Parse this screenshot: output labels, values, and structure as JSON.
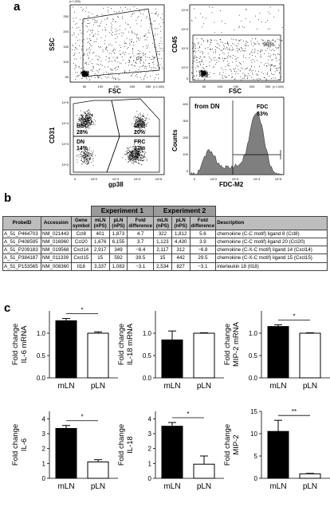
{
  "panel_labels": {
    "a": "a",
    "b": "b",
    "c": "c"
  },
  "flow": {
    "p1": {
      "xlabel": "FSC",
      "ylabel": "SSC",
      "gate": "P1",
      "xscale": "(x 1,000)",
      "yscale": "(x 1,000)",
      "yticks": [
        "250",
        "200",
        "150",
        "100",
        "50"
      ],
      "xticks": [
        "50",
        "100",
        "150",
        "200",
        "250"
      ]
    },
    "p2": {
      "xlabel": "FSC",
      "ylabel": "CD45",
      "pct": "98%",
      "xscale": "(x 1,000)",
      "yticks": [
        "10^5",
        "10^4",
        "10^3",
        "10^2",
        "0"
      ],
      "xticks": [
        "50",
        "100",
        "150",
        "200",
        "250"
      ]
    },
    "p3": {
      "xlabel": "gp38",
      "ylabel": "CD31",
      "bec": "BEC",
      "bec_pct": "28%",
      "lec": "LEC",
      "lec_pct": "20%",
      "dn": "DN",
      "dn_pct": "14%",
      "frc": "FRC",
      "frc_pct": "37%",
      "yticks": [
        "10^5",
        "10^4",
        "10^3",
        "10^2"
      ],
      "xticks": [
        "0",
        "10^2",
        "10^3",
        "10^4",
        "10^5"
      ]
    },
    "p4": {
      "xlabel": "FDC-M2",
      "ylabel": "Counts",
      "from": "from DN",
      "gate": "FDC",
      "gate_pct": "53%",
      "yticks": [
        "400",
        "300",
        "200",
        "100",
        "0"
      ],
      "xticks": [
        "0",
        "10^2",
        "10^3",
        "10^4",
        "10^5"
      ]
    }
  },
  "table": {
    "exp1": "Experiment 1",
    "exp2": "Experiment 2",
    "headers": [
      "ProbeID",
      "Accession",
      "Gene symbol",
      "mLN (nPS)",
      "pLN (nPS)",
      "Fold difference",
      "mLN (nPS)",
      "pLN (nPS)",
      "Fold difference",
      "Description"
    ],
    "rows": [
      [
        "A_51_P464703",
        "NM_021443",
        "Ccl8",
        "401",
        "1,873",
        "4.7",
        "322",
        "1,812",
        "5.6",
        "chemokine (C-C motif) ligand 8 (Ccl8)"
      ],
      [
        "A_51_P408595",
        "NM_016960",
        "Ccl20",
        "1,676",
        "6,155",
        "3.7",
        "1,123",
        "4,430",
        "3.9",
        "chemokine (C-C motif) ligand 20 (Ccl20)"
      ],
      [
        "A_51_P209183",
        "NM_019568",
        "Cxcl14",
        "2,917",
        "349",
        "−8.4",
        "2,117",
        "312",
        "−6.8",
        "chemokine (C-X-C motif) ligand 14 (Cxcl14)"
      ],
      [
        "A_51_P384187",
        "NM_011339",
        "Cxcl15",
        "15",
        "592",
        "39.5",
        "15",
        "442",
        "29.5",
        "chemokine (C-X-C motif) ligand 15 (Cxcl15)"
      ],
      [
        "A_51_P153565",
        "NM_008360",
        "Il18",
        "3,337",
        "1,083",
        "−3.1",
        "2,534",
        "827",
        "−3.1",
        "interleukin 18 (Il18)"
      ]
    ]
  },
  "chart_data": [
    {
      "type": "bar",
      "ylabel": "Fold change IL-6 mRNA",
      "categories": [
        "mLN",
        "pLN"
      ],
      "values": [
        1.28,
        1.0
      ],
      "errors": [
        0.05,
        0.03
      ],
      "ylim": [
        0,
        1.5
      ],
      "yticks": [
        "0.0",
        "0.5",
        "1.0"
      ],
      "sig": "*",
      "fills": [
        "#000000",
        "#ffffff"
      ]
    },
    {
      "type": "bar",
      "ylabel": "Fold change IL-18 mRNA",
      "categories": [
        "mLN",
        "pLN"
      ],
      "values": [
        0.85,
        1.0
      ],
      "errors": [
        0.2,
        0.01
      ],
      "ylim": [
        0,
        1.5
      ],
      "yticks": [
        "0.0",
        "0.5",
        "1.0"
      ],
      "sig": "",
      "fills": [
        "#000000",
        "#ffffff"
      ]
    },
    {
      "type": "bar",
      "ylabel": "Fold change MIP-2 mRNA",
      "categories": [
        "mLN",
        "pLN"
      ],
      "values": [
        1.15,
        1.0
      ],
      "errors": [
        0.04,
        0.01
      ],
      "ylim": [
        0,
        1.5
      ],
      "yticks": [
        "0.0",
        "0.5",
        "1.0"
      ],
      "sig": "*",
      "fills": [
        "#000000",
        "#ffffff"
      ]
    },
    {
      "type": "bar",
      "ylabel": "Fold change IL-6",
      "categories": [
        "mLN",
        "pLN"
      ],
      "values": [
        3.35,
        1.1
      ],
      "errors": [
        0.2,
        0.15
      ],
      "ylim": [
        0,
        4.5
      ],
      "yticks": [
        "0",
        "1",
        "2",
        "3",
        "4"
      ],
      "sig": "*",
      "fills": [
        "#000000",
        "#ffffff"
      ]
    },
    {
      "type": "bar",
      "ylabel": "Fold change IL-18",
      "categories": [
        "mLN",
        "pLN"
      ],
      "values": [
        3.5,
        0.95
      ],
      "errors": [
        0.25,
        0.55
      ],
      "ylim": [
        0,
        4.5
      ],
      "yticks": [
        "0",
        "1",
        "2",
        "3",
        "4"
      ],
      "sig": "*",
      "fills": [
        "#000000",
        "#ffffff"
      ]
    },
    {
      "type": "bar",
      "ylabel": "Fold change MIP-2",
      "categories": [
        "mLN",
        "pLN"
      ],
      "values": [
        10.5,
        1.0
      ],
      "errors": [
        2.5,
        0.1
      ],
      "ylim": [
        0,
        15
      ],
      "yticks": [
        "0",
        "5",
        "10",
        "15"
      ],
      "sig": "**",
      "fills": [
        "#000000",
        "#ffffff"
      ]
    }
  ]
}
